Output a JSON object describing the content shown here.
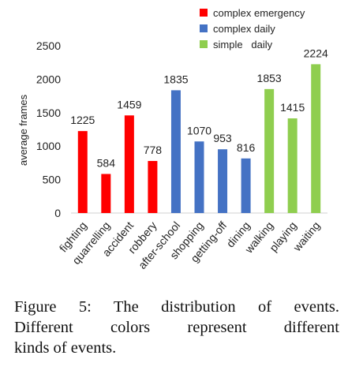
{
  "chart_data": {
    "type": "bar",
    "ylabel": "average frames",
    "ylim": [
      0,
      2500
    ],
    "yticks": [
      "0",
      "500",
      "1000",
      "1500",
      "2000",
      "2500"
    ],
    "grid": false,
    "legend_position": "top-right",
    "categories": [
      "fighting",
      "quarrelling",
      "accident",
      "robbery",
      "after-school",
      "shopping",
      "getting-off",
      "dining",
      "walking",
      "playing",
      "waiting"
    ],
    "values": [
      1225,
      584,
      1459,
      778,
      1835,
      1070,
      953,
      816,
      1853,
      1415,
      2224
    ],
    "data_labels": [
      "1225",
      "584",
      "1459",
      "778",
      "1835",
      "1070",
      "953",
      "816",
      "1853",
      "1415",
      "2224"
    ],
    "groups": [
      {
        "name": "complex emergency",
        "color": "#ff0000",
        "indices": [
          0,
          1,
          2,
          3
        ]
      },
      {
        "name": "complex daily",
        "color": "#4472c4",
        "indices": [
          4,
          5,
          6,
          7
        ]
      },
      {
        "name": "simple   daily",
        "color": "#8fce4f",
        "indices": [
          8,
          9,
          10
        ]
      }
    ]
  },
  "caption": {
    "line1": "Figure 5: The distribution of events.",
    "line2": "Different colors represent different",
    "line3": "kinds of events."
  }
}
